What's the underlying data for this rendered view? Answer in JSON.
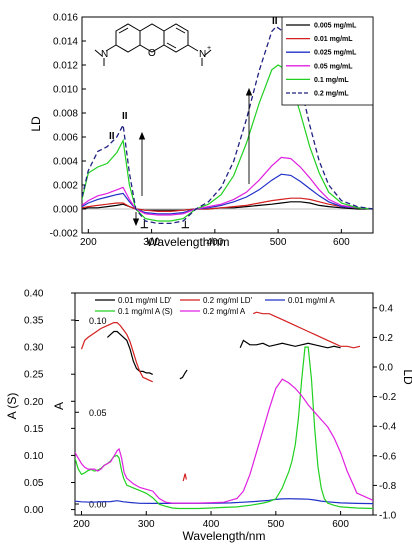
{
  "chart_data": [
    {
      "type": "line",
      "xlabel": "Wavelength/nm",
      "ylabel": "LD",
      "xlim": [
        190,
        650
      ],
      "ylim": [
        -0.002,
        0.016
      ],
      "xticks": [
        200,
        300,
        400,
        500,
        600
      ],
      "yticks": [
        -0.002,
        0.0,
        0.002,
        0.004,
        0.006,
        0.008,
        0.01,
        0.012,
        0.014,
        0.016
      ],
      "ytick_labels": [
        "-0.002",
        "0.000",
        "0.002",
        "0.004",
        "0.006",
        "0.008",
        "0.010",
        "0.012",
        "0.014",
        "0.016"
      ],
      "legend_position": "top-right",
      "annotations": [
        "II",
        "II",
        "II",
        "⊥",
        "⊥",
        "N",
        "O",
        "N",
        "+"
      ],
      "series": [
        {
          "name": "0.005 mg/mL",
          "color": "#000000",
          "dash": false,
          "x": [
            190,
            200,
            215,
            230,
            245,
            255,
            265,
            275,
            290,
            310,
            330,
            350,
            370,
            390,
            410,
            430,
            450,
            470,
            490,
            505,
            520,
            535,
            550,
            565,
            580,
            600,
            625,
            650
          ],
          "y": [
            0.0,
            0.0001,
            0.0001,
            0.0002,
            0.0003,
            0.0004,
            0.0002,
            0.0,
            -0.0001,
            -0.0001,
            -0.0001,
            -0.0001,
            0.0,
            0.0,
            0.0001,
            0.0001,
            0.0002,
            0.0003,
            0.0004,
            0.0005,
            0.0006,
            0.0006,
            0.0005,
            0.0003,
            0.0002,
            0.0001,
            0.0,
            0.0
          ]
        },
        {
          "name": "0.01 mg/mL",
          "color": "#d42020",
          "dash": false,
          "x": [
            190,
            200,
            215,
            230,
            245,
            255,
            265,
            275,
            290,
            310,
            330,
            350,
            370,
            390,
            410,
            430,
            450,
            470,
            490,
            505,
            520,
            535,
            550,
            565,
            580,
            600,
            625,
            650
          ],
          "y": [
            0.0001,
            0.0002,
            0.0003,
            0.0004,
            0.0005,
            0.0005,
            0.0002,
            0.0,
            -0.0001,
            -0.0002,
            -0.0002,
            -0.0001,
            0.0,
            0.0,
            0.0001,
            0.0002,
            0.0003,
            0.0005,
            0.0007,
            0.0008,
            0.0009,
            0.0009,
            0.0008,
            0.0006,
            0.0004,
            0.0002,
            0.0001,
            0.0
          ]
        },
        {
          "name": "0.025 mg/mL",
          "color": "#2030c8",
          "dash": false,
          "x": [
            190,
            200,
            215,
            230,
            245,
            255,
            265,
            275,
            290,
            310,
            330,
            350,
            370,
            390,
            410,
            430,
            450,
            470,
            490,
            505,
            520,
            535,
            550,
            565,
            580,
            600,
            625,
            650
          ],
          "y": [
            0.0002,
            0.0005,
            0.0008,
            0.001,
            0.0012,
            0.0013,
            0.0006,
            0.0,
            -0.0003,
            -0.0004,
            -0.0004,
            -0.0003,
            0.0,
            0.0001,
            0.0003,
            0.0006,
            0.001,
            0.0016,
            0.0024,
            0.0029,
            0.0028,
            0.0023,
            0.0017,
            0.0011,
            0.0006,
            0.0002,
            0.0001,
            0.0
          ]
        },
        {
          "name": "0.05 mg/mL",
          "color": "#e020e0",
          "dash": false,
          "x": [
            190,
            200,
            215,
            230,
            245,
            255,
            265,
            275,
            290,
            310,
            330,
            350,
            370,
            390,
            410,
            430,
            450,
            470,
            490,
            505,
            520,
            535,
            550,
            565,
            580,
            600,
            625,
            650
          ],
          "y": [
            0.0003,
            0.0007,
            0.0011,
            0.0013,
            0.0016,
            0.0018,
            0.0008,
            0.0,
            -0.0004,
            -0.0005,
            -0.0005,
            -0.0004,
            0.0,
            0.0002,
            0.0004,
            0.0008,
            0.0014,
            0.0024,
            0.0036,
            0.0043,
            0.0042,
            0.0035,
            0.0026,
            0.0016,
            0.0008,
            0.0003,
            0.0001,
            0.0
          ]
        },
        {
          "name": "0.1 mg/mL",
          "color": "#20d020",
          "dash": false,
          "x": [
            190,
            200,
            215,
            230,
            245,
            255,
            265,
            275,
            290,
            310,
            330,
            350,
            370,
            390,
            410,
            430,
            450,
            470,
            490,
            500,
            510,
            520,
            535,
            550,
            565,
            580,
            600,
            625,
            650
          ],
          "y": [
            0.0008,
            0.003,
            0.0035,
            0.0038,
            0.0047,
            0.0057,
            0.002,
            0.0,
            -0.0008,
            -0.001,
            -0.001,
            -0.0008,
            0.0,
            0.0004,
            0.0012,
            0.0028,
            0.0055,
            0.0088,
            0.0116,
            0.012,
            0.0117,
            0.0106,
            0.008,
            0.0052,
            0.003,
            0.0014,
            0.0005,
            0.0001,
            0.0
          ]
        },
        {
          "name": "0.2 mg/mL",
          "color": "#202080",
          "dash": true,
          "x": [
            190,
            200,
            215,
            230,
            245,
            255,
            265,
            275,
            290,
            310,
            330,
            350,
            370,
            390,
            410,
            430,
            450,
            470,
            490,
            497,
            505,
            520,
            535,
            550,
            565,
            580,
            600,
            625,
            650
          ],
          "y": [
            0.001,
            0.0032,
            0.0048,
            0.0052,
            0.006,
            0.007,
            0.003,
            0.0,
            -0.001,
            -0.0012,
            -0.0012,
            -0.001,
            0.0,
            0.0006,
            0.0018,
            0.004,
            0.0075,
            0.0115,
            0.0148,
            0.0152,
            0.0149,
            0.0132,
            0.0104,
            0.007,
            0.004,
            0.002,
            0.0007,
            0.0002,
            0.0
          ]
        }
      ]
    },
    {
      "type": "line",
      "xlabel": "Wavelength/nm",
      "ylabel_left": "A (S)",
      "ylabel_left_inner": "A",
      "ylabel_right": "LD",
      "xlim": [
        190,
        650
      ],
      "ylim_left": [
        -0.01,
        0.4
      ],
      "ylim_right": [
        -1.0,
        0.5
      ],
      "ylim_inner": [
        -0.006,
        0.115
      ],
      "xticks": [
        200,
        300,
        400,
        500,
        600
      ],
      "yticks_left": [
        0.0,
        0.05,
        0.1,
        0.15,
        0.2,
        0.25,
        0.3,
        0.35,
        0.4
      ],
      "yticks_left_labels": [
        "0.00",
        "0.05",
        "0.10",
        "0.15",
        "0.20",
        "0.25",
        "0.30",
        "0.35",
        "0.40"
      ],
      "yticks_inner": [
        0.0,
        0.05,
        0.1
      ],
      "yticks_inner_labels": [
        "0.00",
        "0.05",
        "0.10"
      ],
      "yticks_right": [
        0.4,
        0.2,
        0.0,
        -0.2,
        -0.4,
        -0.6,
        -0.8,
        -1.0
      ],
      "yticks_right_labels": [
        "0.4",
        "0.2",
        "0.0",
        "-0.2",
        "-0.4",
        "-0.6",
        "-0.8",
        "-1.0"
      ],
      "legend_position": "top",
      "series": [
        {
          "name": "0.01 mg/ml LD'",
          "color": "#000000",
          "axis": "right",
          "segments": [
            {
              "x": [
                240,
                245,
                250,
                255,
                260,
                265,
                270,
                275,
                280,
                285,
                290,
                295,
                300,
                305,
                310
              ],
              "y": [
                0.2,
                0.22,
                0.24,
                0.24,
                0.22,
                0.2,
                0.18,
                0.12,
                0.04,
                -0.01,
                -0.03,
                -0.03,
                -0.04,
                -0.04,
                -0.05
              ]
            },
            {
              "x": [
                352,
                356,
                360,
                363
              ],
              "y": [
                -0.08,
                -0.07,
                -0.04,
                -0.02
              ]
            },
            {
              "x": [
                445,
                450,
                460,
                470,
                480,
                490,
                500,
                510,
                520,
                530,
                540,
                550,
                560,
                570,
                580,
                590,
                600
              ],
              "y": [
                0.13,
                0.18,
                0.15,
                0.15,
                0.16,
                0.14,
                0.15,
                0.16,
                0.15,
                0.14,
                0.15,
                0.16,
                0.15,
                0.14,
                0.13,
                0.14,
                0.13
              ]
            }
          ]
        },
        {
          "name": "0.2 mg/ml LD'",
          "color": "#d42020",
          "axis": "right",
          "segments": [
            {
              "x": [
                200,
                205,
                210,
                220,
                230,
                240,
                250,
                255,
                260,
                265,
                270,
                275,
                280,
                285,
                290,
                295,
                300,
                305,
                310
              ],
              "y": [
                0.12,
                0.18,
                0.2,
                0.23,
                0.26,
                0.28,
                0.3,
                0.3,
                0.28,
                0.25,
                0.22,
                0.17,
                0.1,
                0.03,
                -0.03,
                -0.07,
                -0.08,
                -0.09,
                -0.1
              ]
            },
            {
              "x": [
                357,
                360,
                362
              ],
              "y": [
                -0.77,
                -0.72,
                -0.76
              ]
            },
            {
              "x": [
                465,
                470,
                480,
                490,
                500,
                510,
                520,
                530,
                540,
                550,
                560,
                570,
                580,
                590,
                600,
                610,
                620,
                630
              ],
              "y": [
                0.36,
                0.37,
                0.36,
                0.36,
                0.34,
                0.32,
                0.3,
                0.28,
                0.26,
                0.24,
                0.22,
                0.2,
                0.18,
                0.16,
                0.14,
                0.14,
                0.13,
                0.14
              ]
            }
          ]
        },
        {
          "name": "0.01 mg/ml A",
          "color": "#2030c8",
          "axis": "inner",
          "x": [
            190,
            200,
            215,
            230,
            245,
            255,
            265,
            275,
            290,
            310,
            330,
            350,
            370,
            390,
            410,
            430,
            450,
            470,
            490,
            500,
            510,
            520,
            530,
            540,
            550,
            560,
            570,
            580,
            600,
            625,
            650
          ],
          "y": [
            0.0015,
            0.0012,
            0.001,
            0.0012,
            0.0013,
            0.0018,
            0.0012,
            0.0008,
            0.0004,
            0.0003,
            0.0003,
            0.0004,
            0.0004,
            0.0004,
            0.0005,
            0.0006,
            0.001,
            0.0014,
            0.002,
            0.0025,
            0.0028,
            0.0029,
            0.0028,
            0.0027,
            0.0026,
            0.0022,
            0.0016,
            0.0012,
            0.0006,
            0.0003,
            0.0002
          ]
        },
        {
          "name": "0.1 mg/ml A (S)",
          "color": "#20d020",
          "axis": "left",
          "x": [
            190,
            195,
            200,
            205,
            210,
            215,
            220,
            225,
            230,
            235,
            240,
            245,
            250,
            255,
            258,
            262,
            265,
            270,
            280,
            290,
            300,
            310,
            320,
            330,
            340,
            350,
            360,
            380,
            400,
            420,
            440,
            460,
            480,
            490,
            500,
            510,
            515,
            520,
            525,
            530,
            535,
            540,
            545,
            550,
            555,
            560,
            565,
            570,
            575,
            580,
            590,
            600,
            625,
            650
          ],
          "y": [
            0.095,
            0.075,
            0.065,
            0.068,
            0.072,
            0.074,
            0.071,
            0.073,
            0.076,
            0.082,
            0.085,
            0.09,
            0.098,
            0.1,
            0.095,
            0.072,
            0.058,
            0.045,
            0.04,
            0.035,
            0.03,
            0.022,
            0.01,
            0.006,
            0.003,
            0.002,
            0.002,
            0.002,
            0.003,
            0.004,
            0.005,
            0.008,
            0.012,
            0.015,
            0.02,
            0.04,
            0.055,
            0.07,
            0.09,
            0.12,
            0.17,
            0.24,
            0.3,
            0.3,
            0.24,
            0.15,
            0.08,
            0.04,
            0.02,
            0.012,
            0.008,
            0.005,
            0.003,
            0.002
          ]
        },
        {
          "name": "0.2 mg/ml A",
          "color": "#e020e0",
          "axis": "inner",
          "x": [
            190,
            195,
            200,
            205,
            210,
            220,
            225,
            230,
            235,
            240,
            245,
            250,
            255,
            258,
            262,
            266,
            270,
            280,
            290,
            300,
            310,
            320,
            330,
            340,
            350,
            360,
            380,
            400,
            420,
            440,
            450,
            460,
            470,
            480,
            490,
            500,
            510,
            520,
            530,
            540,
            550,
            560,
            570,
            580,
            590,
            600,
            610,
            620,
            625,
            650
          ],
          "y": [
            0.028,
            0.025,
            0.022,
            0.02,
            0.019,
            0.019,
            0.018,
            0.019,
            0.021,
            0.022,
            0.023,
            0.026,
            0.029,
            0.03,
            0.025,
            0.017,
            0.014,
            0.011,
            0.009,
            0.008,
            0.007,
            0.003,
            0.001,
            0.0005,
            0.0005,
            0.0005,
            0.0005,
            0.0007,
            0.001,
            0.003,
            0.007,
            0.016,
            0.028,
            0.04,
            0.052,
            0.063,
            0.068,
            0.066,
            0.063,
            0.059,
            0.054,
            0.05,
            0.046,
            0.042,
            0.036,
            0.028,
            0.018,
            0.01,
            0.006,
            0.002
          ]
        }
      ]
    }
  ]
}
